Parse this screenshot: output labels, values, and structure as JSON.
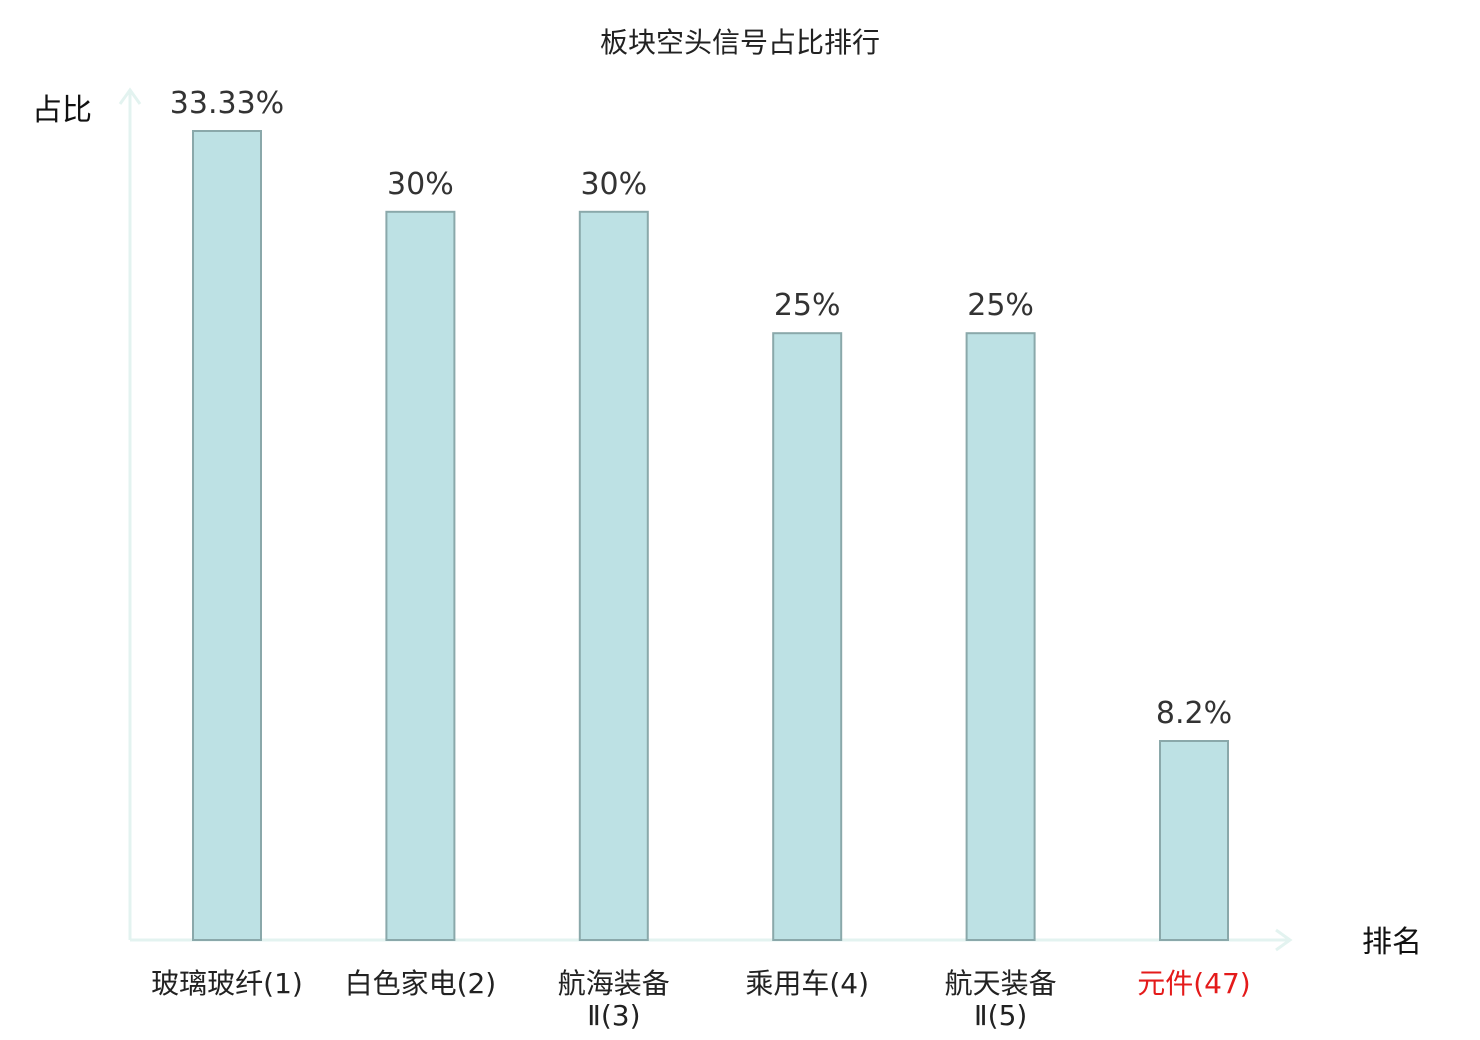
{
  "chart_data": {
    "type": "bar",
    "title": "板块空头信号占比排行",
    "xlabel": "排名",
    "ylabel": "占比",
    "categories": [
      {
        "label": "玻璃玻纤",
        "rank": "(1)",
        "lines": [
          "玻璃玻纤(1)"
        ],
        "highlight": false
      },
      {
        "label": "白色家电",
        "rank": "(2)",
        "lines": [
          "白色家电(2)"
        ],
        "highlight": false
      },
      {
        "label": "航海装备Ⅱ",
        "rank": "(3)",
        "lines": [
          "航海装备",
          "Ⅱ(3)"
        ],
        "highlight": false
      },
      {
        "label": "乘用车",
        "rank": "(4)",
        "lines": [
          "乘用车(4)"
        ],
        "highlight": false
      },
      {
        "label": "航天装备Ⅱ",
        "rank": "(5)",
        "lines": [
          "航天装备",
          "Ⅱ(5)"
        ],
        "highlight": false
      },
      {
        "label": "元件",
        "rank": "(47)",
        "lines": [
          "元件(47)"
        ],
        "highlight": true
      }
    ],
    "values": [
      33.33,
      30,
      30,
      25,
      25,
      8.2
    ],
    "value_labels": [
      "33.33%",
      "30%",
      "30%",
      "25%",
      "25%",
      "8.2%"
    ],
    "ylim": [
      0,
      33.33
    ],
    "grid": false,
    "colors": {
      "bar_fill": "#bde1e4",
      "bar_stroke": "#8aa8aa",
      "axis": "#e3f3f0",
      "text": "#333333",
      "highlight_text": "#e41a1a",
      "normal_text": "#222222",
      "rank_text": "#555555"
    }
  }
}
